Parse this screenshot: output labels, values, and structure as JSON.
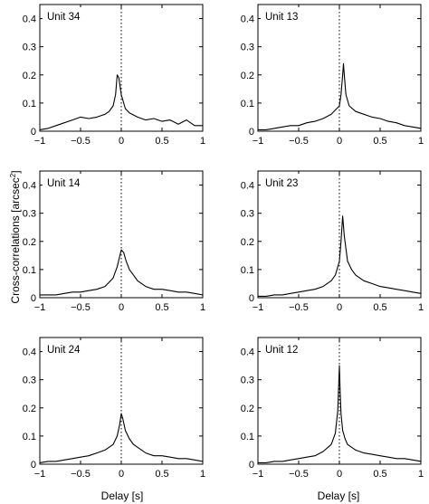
{
  "figure": {
    "ylabel": "Cross-correlations [arcsec",
    "ylabel_sup": "2",
    "ylabel_close": "]",
    "xlabel": "Delay [s]"
  },
  "chart_data": [
    {
      "type": "line",
      "title": "Unit 34",
      "xlim": [
        -1,
        1
      ],
      "ylim": [
        0,
        0.45
      ],
      "xticks": [
        -1,
        -0.5,
        0,
        0.5,
        1
      ],
      "xtick_labels": [
        "−1",
        "−0.5",
        "0",
        "0.5",
        "1"
      ],
      "yticks": [
        0,
        0.1,
        0.2,
        0.3,
        0.4
      ],
      "ytick_labels": [
        "0",
        "0.1",
        "0.2",
        "0.3",
        "0.4"
      ],
      "grid": "dotted vertical line at 0",
      "series": [
        {
          "x": [
            -1,
            -0.9,
            -0.8,
            -0.7,
            -0.6,
            -0.5,
            -0.4,
            -0.3,
            -0.2,
            -0.15,
            -0.1,
            -0.07,
            -0.05,
            -0.03,
            0,
            0.05,
            0.1,
            0.2,
            0.3,
            0.4,
            0.5,
            0.6,
            0.7,
            0.8,
            0.9,
            1
          ],
          "y": [
            0.005,
            0.01,
            0.02,
            0.03,
            0.04,
            0.05,
            0.045,
            0.05,
            0.06,
            0.07,
            0.09,
            0.13,
            0.2,
            0.19,
            0.13,
            0.08,
            0.065,
            0.05,
            0.04,
            0.045,
            0.035,
            0.04,
            0.025,
            0.04,
            0.02,
            0.02
          ]
        }
      ]
    },
    {
      "type": "line",
      "title": "Unit 13",
      "xlim": [
        -1,
        1
      ],
      "ylim": [
        0,
        0.45
      ],
      "xticks": [
        -1,
        -0.5,
        0,
        0.5,
        1
      ],
      "xtick_labels": [
        "−1",
        "−0.5",
        "0",
        "0.5",
        "1"
      ],
      "yticks": [
        0,
        0.1,
        0.2,
        0.3,
        0.4
      ],
      "ytick_labels": [
        "0",
        "0.1",
        "0.2",
        "0.3",
        "0.4"
      ],
      "grid": "dotted vertical line at 0",
      "series": [
        {
          "x": [
            -1,
            -0.9,
            -0.8,
            -0.7,
            -0.6,
            -0.5,
            -0.4,
            -0.3,
            -0.2,
            -0.1,
            0,
            0.02,
            0.04,
            0.05,
            0.06,
            0.08,
            0.12,
            0.2,
            0.3,
            0.4,
            0.5,
            0.6,
            0.7,
            0.8,
            0.9,
            1
          ],
          "y": [
            0.005,
            0.005,
            0.01,
            0.015,
            0.02,
            0.02,
            0.03,
            0.035,
            0.045,
            0.06,
            0.09,
            0.13,
            0.2,
            0.24,
            0.2,
            0.13,
            0.09,
            0.07,
            0.06,
            0.05,
            0.045,
            0.035,
            0.03,
            0.02,
            0.015,
            0.01
          ]
        }
      ]
    },
    {
      "type": "line",
      "title": "Unit 14",
      "xlim": [
        -1,
        1
      ],
      "ylim": [
        0,
        0.45
      ],
      "xticks": [
        -1,
        -0.5,
        0,
        0.5,
        1
      ],
      "xtick_labels": [
        "−1",
        "−0.5",
        "0",
        "0.5",
        "1"
      ],
      "yticks": [
        0,
        0.1,
        0.2,
        0.3,
        0.4
      ],
      "ytick_labels": [
        "0",
        "0.1",
        "0.2",
        "0.3",
        "0.4"
      ],
      "grid": "dotted vertical line at 0",
      "series": [
        {
          "x": [
            -1,
            -0.9,
            -0.8,
            -0.7,
            -0.6,
            -0.5,
            -0.4,
            -0.3,
            -0.2,
            -0.1,
            -0.05,
            0,
            0.03,
            0.06,
            0.1,
            0.15,
            0.2,
            0.3,
            0.4,
            0.5,
            0.6,
            0.7,
            0.8,
            0.9,
            1
          ],
          "y": [
            0.01,
            0.01,
            0.01,
            0.015,
            0.02,
            0.02,
            0.025,
            0.03,
            0.04,
            0.07,
            0.11,
            0.17,
            0.16,
            0.13,
            0.1,
            0.08,
            0.06,
            0.04,
            0.03,
            0.03,
            0.025,
            0.02,
            0.02,
            0.015,
            0.01
          ]
        }
      ]
    },
    {
      "type": "line",
      "title": "Unit 23",
      "xlim": [
        -1,
        1
      ],
      "ylim": [
        0,
        0.45
      ],
      "xticks": [
        -1,
        -0.5,
        0,
        0.5,
        1
      ],
      "xtick_labels": [
        "−1",
        "−0.5",
        "0",
        "0.5",
        "1"
      ],
      "yticks": [
        0,
        0.1,
        0.2,
        0.3,
        0.4
      ],
      "ytick_labels": [
        "0",
        "0.1",
        "0.2",
        "0.3",
        "0.4"
      ],
      "grid": "dotted vertical line at 0",
      "series": [
        {
          "x": [
            -1,
            -0.9,
            -0.8,
            -0.7,
            -0.6,
            -0.5,
            -0.4,
            -0.3,
            -0.2,
            -0.1,
            -0.05,
            0,
            0.02,
            0.04,
            0.06,
            0.1,
            0.15,
            0.2,
            0.3,
            0.4,
            0.5,
            0.6,
            0.7,
            0.8,
            0.9,
            1
          ],
          "y": [
            0.005,
            0.005,
            0.01,
            0.01,
            0.015,
            0.02,
            0.025,
            0.03,
            0.04,
            0.06,
            0.08,
            0.13,
            0.2,
            0.29,
            0.22,
            0.13,
            0.1,
            0.08,
            0.06,
            0.05,
            0.04,
            0.035,
            0.03,
            0.025,
            0.02,
            0.015
          ]
        }
      ]
    },
    {
      "type": "line",
      "title": "Unit 24",
      "xlim": [
        -1,
        1
      ],
      "ylim": [
        0,
        0.45
      ],
      "xticks": [
        -1,
        -0.5,
        0,
        0.5,
        1
      ],
      "xtick_labels": [
        "−1",
        "−0.5",
        "0",
        "0.5",
        "1"
      ],
      "yticks": [
        0,
        0.1,
        0.2,
        0.3,
        0.4
      ],
      "ytick_labels": [
        "0",
        "0.1",
        "0.2",
        "0.3",
        "0.4"
      ],
      "grid": "dotted vertical line at 0",
      "series": [
        {
          "x": [
            -1,
            -0.9,
            -0.8,
            -0.7,
            -0.6,
            -0.5,
            -0.4,
            -0.3,
            -0.2,
            -0.1,
            -0.05,
            -0.02,
            0,
            0.02,
            0.05,
            0.1,
            0.15,
            0.2,
            0.3,
            0.4,
            0.5,
            0.6,
            0.7,
            0.8,
            0.9,
            1
          ],
          "y": [
            0.005,
            0.01,
            0.01,
            0.015,
            0.02,
            0.025,
            0.03,
            0.04,
            0.05,
            0.07,
            0.1,
            0.14,
            0.18,
            0.16,
            0.12,
            0.09,
            0.07,
            0.06,
            0.04,
            0.03,
            0.03,
            0.025,
            0.02,
            0.02,
            0.015,
            0.01
          ]
        }
      ]
    },
    {
      "type": "line",
      "title": "Unit 12",
      "xlim": [
        -1,
        1
      ],
      "ylim": [
        0,
        0.45
      ],
      "xticks": [
        -1,
        -0.5,
        0,
        0.5,
        1
      ],
      "xtick_labels": [
        "−1",
        "−0.5",
        "0",
        "0.5",
        "1"
      ],
      "yticks": [
        0,
        0.1,
        0.2,
        0.3,
        0.4
      ],
      "ytick_labels": [
        "0",
        "0.1",
        "0.2",
        "0.3",
        "0.4"
      ],
      "grid": "dotted vertical line at 0",
      "series": [
        {
          "x": [
            -1,
            -0.9,
            -0.8,
            -0.7,
            -0.6,
            -0.5,
            -0.4,
            -0.3,
            -0.2,
            -0.1,
            -0.05,
            -0.02,
            0,
            0.01,
            0.02,
            0.04,
            0.07,
            0.1,
            0.2,
            0.3,
            0.4,
            0.5,
            0.6,
            0.7,
            0.8,
            0.9,
            1
          ],
          "y": [
            0.005,
            0.005,
            0.01,
            0.01,
            0.015,
            0.02,
            0.025,
            0.03,
            0.045,
            0.07,
            0.11,
            0.19,
            0.35,
            0.25,
            0.18,
            0.12,
            0.09,
            0.07,
            0.05,
            0.04,
            0.035,
            0.03,
            0.025,
            0.02,
            0.02,
            0.015,
            0.01
          ]
        }
      ]
    }
  ]
}
